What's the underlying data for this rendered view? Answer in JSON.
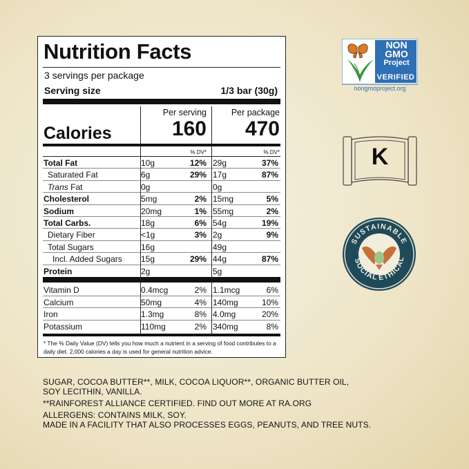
{
  "nutrition": {
    "title": "Nutrition Facts",
    "servings_per_package": "3 servings per package",
    "serving_size_label": "Serving size",
    "serving_size_value": "1/3 bar (30g)",
    "calories_label": "Calories",
    "per_serving_label": "Per serving",
    "per_package_label": "Per package",
    "calories_per_serving": "160",
    "calories_per_package": "470",
    "dv_label": "% DV*",
    "nutrients": [
      {
        "name": "Total Fat",
        "a1": "10g",
        "p1": "12%",
        "a2": "29g",
        "p2": "37%"
      },
      {
        "name": "Saturated Fat",
        "a1": "6g",
        "p1": "29%",
        "a2": "17g",
        "p2": "87%"
      },
      {
        "name_italic": "Trans",
        "name_rest": " Fat",
        "a1": "0g",
        "p1": "",
        "a2": "0g",
        "p2": ""
      },
      {
        "name": "Cholesterol",
        "a1": "5mg",
        "p1": "2%",
        "a2": "15mg",
        "p2": "5%"
      },
      {
        "name": "Sodium",
        "a1": "20mg",
        "p1": "1%",
        "a2": "55mg",
        "p2": "2%"
      },
      {
        "name": "Total Carbs.",
        "a1": "18g",
        "p1": "6%",
        "a2": "54g",
        "p2": "19%"
      },
      {
        "name": "Dietary Fiber",
        "a1": "<1g",
        "p1": "3%",
        "a2": "2g",
        "p2": "9%"
      },
      {
        "name": "Total Sugars",
        "a1": "16g",
        "p1": "",
        "a2": "49g",
        "p2": ""
      },
      {
        "name": "Incl. Added Sugars",
        "a1": "15g",
        "p1": "29%",
        "a2": "44g",
        "p2": "87%"
      },
      {
        "name": "Protein",
        "a1": "2g",
        "p1": "",
        "a2": "5g",
        "p2": ""
      }
    ],
    "vitamins": [
      {
        "name": "Vitamin D",
        "a1": "0.4mcg",
        "p1": "2%",
        "a2": "1.1mcg",
        "p2": "6%"
      },
      {
        "name": "Calcium",
        "a1": "50mg",
        "p1": "4%",
        "a2": "140mg",
        "p2": "10%"
      },
      {
        "name": "Iron",
        "a1": "1.3mg",
        "p1": "8%",
        "a2": "4.0mg",
        "p2": "20%"
      },
      {
        "name": "Potassium",
        "a1": "110mg",
        "p1": "2%",
        "a2": "340mg",
        "p2": "8%"
      }
    ],
    "footnote": "* The % Daily Value (DV) tells you how much a nutrient in a serving of food contributes to a daily diet. 2,000 calories a day is used for general nutrition advice."
  },
  "ingredients": {
    "line1": "SUGAR, COCOA BUTTER**, MILK, COCOA LIQUOR**,  ORGANIC BUTTER OIL,",
    "line2": "SOY LECITHIN, VANILLA.",
    "rainforest": "**RAINFOREST ALLIANCE CERTIFIED. FIND OUT MORE AT RA.ORG",
    "allergens": "ALLERGENS: CONTAINS MILK, SOY.",
    "facility": "MADE IN A FACILITY THAT ALSO PROCESSES EGGS, PEANUTS, AND TREE NUTS."
  },
  "badges": {
    "nongmo_line1": "NON",
    "nongmo_line2": "GMO",
    "nongmo_line3": "Project",
    "nongmo_verified": "VERIFIED",
    "nongmo_url": "nongmoproject.org",
    "kosher_letter": "K",
    "seal_top": "SUSTAINABLE",
    "seal_left": "SOCIAL",
    "seal_right": "ETHICAL",
    "nongmo_color": "#2f6fb3",
    "seal_color": "#1f4a5a",
    "seal_hands_color": "#c7703c"
  },
  "icons": [
    "butterfly-icon",
    "kosher-scroll-icon",
    "hands-heart-icon"
  ]
}
